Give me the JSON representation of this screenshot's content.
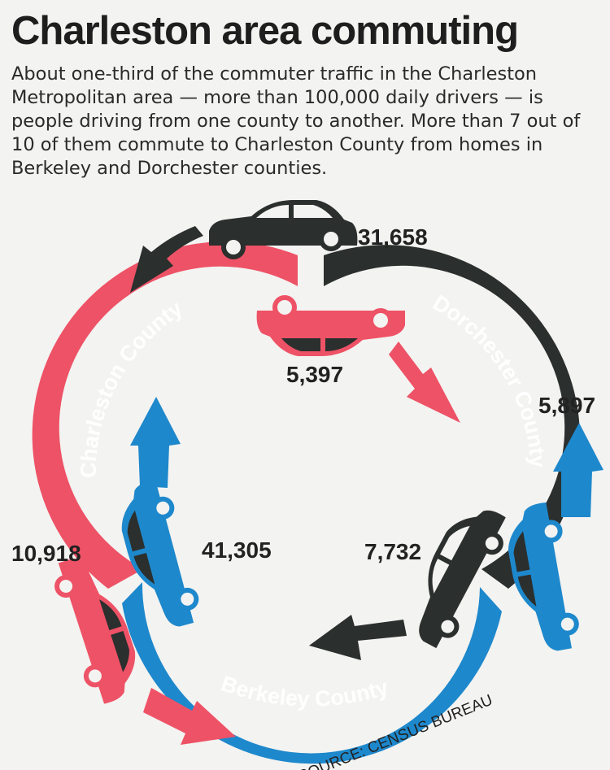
{
  "title": "Charleston area commuting",
  "intro": "About one-third of the commuter traffic in the Charleston Metropolitan area — more than 100,000 daily drivers — is people driving from one county to another. More than 7 out of 10 of them commute to Charleston County from homes in Berkeley and Dorchester counties.",
  "counties": {
    "charleston": "Charleston County",
    "dorchester": "Dorchester County",
    "berkeley": "Berkeley County"
  },
  "flows": {
    "dorchester_to_charleston": "31,658",
    "charleston_to_dorchester": "5,397",
    "dorchester_to_berkeley": "7,732",
    "berkeley_to_dorchester": "5,897",
    "charleston_to_berkeley": "10,918",
    "berkeley_to_charleston": "41,305"
  },
  "source": "SOURCE: CENSUS BUREAU",
  "colors": {
    "charleston": "#ee5266",
    "dorchester": "#2b2f2e",
    "berkeley": "#1e88cc",
    "background": "#f3f3f1"
  },
  "icons": [
    "car-icon",
    "arrow-icon"
  ]
}
